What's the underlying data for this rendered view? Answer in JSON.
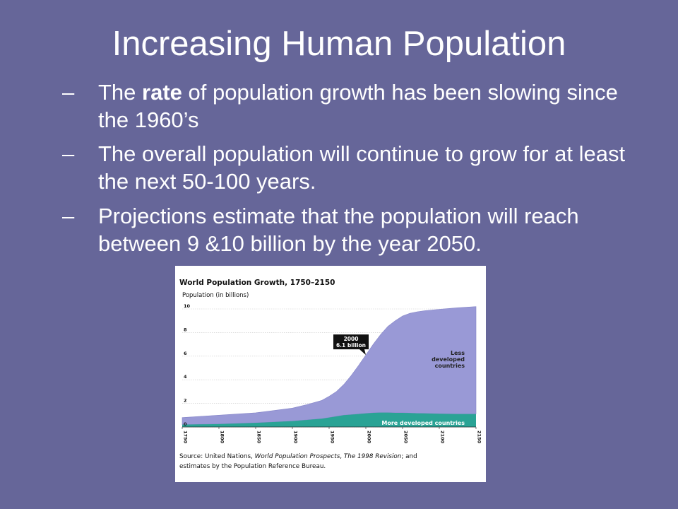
{
  "slide": {
    "title": "Increasing Human Population",
    "bullets": [
      {
        "dash": "–",
        "pre": "The ",
        "bold": "rate",
        "post": " of population growth has been slowing since the 1960’s"
      },
      {
        "dash": "–",
        "text": "The overall population will continue to grow for at least the next 50-100 years."
      },
      {
        "dash": "–",
        "text": "Projections estimate that the population will reach between 9 &10 billion by the year 2050."
      }
    ]
  },
  "chart_data": {
    "type": "area",
    "title": "World Population Growth, 1750–2150",
    "ylabel": "Population (in billions)",
    "xlim": [
      1750,
      2150
    ],
    "ylim": [
      0,
      10
    ],
    "xticks": [
      "1750",
      "1800",
      "1850",
      "1900",
      "1950",
      "2000",
      "2050",
      "2100",
      "2150"
    ],
    "yticks": [
      "0",
      "2",
      "4",
      "6",
      "8",
      "10"
    ],
    "grid": true,
    "x": [
      1750,
      1800,
      1850,
      1900,
      1920,
      1940,
      1950,
      1960,
      1970,
      1980,
      1990,
      2000,
      2010,
      2020,
      2030,
      2040,
      2050,
      2060,
      2070,
      2080,
      2100,
      2125,
      2150
    ],
    "series": [
      {
        "name": "More developed countries",
        "values": [
          0.2,
          0.25,
          0.35,
          0.5,
          0.6,
          0.7,
          0.8,
          0.9,
          1.0,
          1.05,
          1.1,
          1.15,
          1.2,
          1.22,
          1.22,
          1.2,
          1.2,
          1.18,
          1.16,
          1.15,
          1.12,
          1.1,
          1.1
        ],
        "color": "#2aa395"
      },
      {
        "name": "Less developed countries",
        "values": [
          0.6,
          0.75,
          0.85,
          1.1,
          1.3,
          1.55,
          1.8,
          2.1,
          2.6,
          3.3,
          4.1,
          4.95,
          5.8,
          6.6,
          7.3,
          7.8,
          8.2,
          8.45,
          8.6,
          8.7,
          8.85,
          9.0,
          9.1
        ],
        "color": "#9999d6"
      }
    ],
    "annotation": {
      "line1": "2000",
      "line2": "6.1 billion",
      "x": 2000,
      "y": 6.1
    },
    "labels": {
      "less": [
        "Less",
        "developed",
        "countries"
      ],
      "more": "More developed countries"
    },
    "source": {
      "l1_a": "Source: United Nations, ",
      "l1_b": "World Population Prospects",
      "l1_c": ", ",
      "l1_d": "The 1998 Revision",
      "l1_e": "; and",
      "l2": "estimates by the Population Reference Bureau."
    }
  }
}
